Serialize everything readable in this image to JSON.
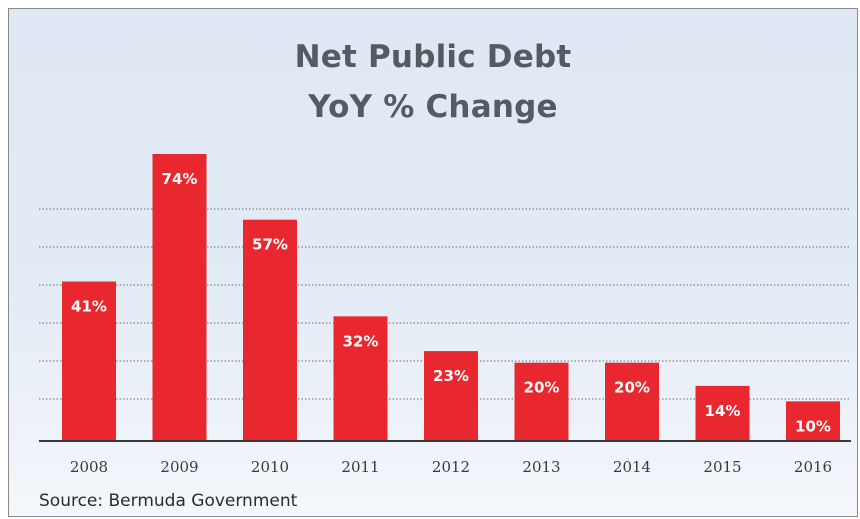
{
  "chart_data": {
    "type": "bar",
    "title": "Net Public Debt",
    "subtitle": "YoY % Change",
    "xlabel": "",
    "ylabel": "",
    "categories": [
      "2008",
      "2009",
      "2010",
      "2011",
      "2012",
      "2013",
      "2014",
      "2015",
      "2016"
    ],
    "values": [
      41,
      74,
      57,
      32,
      23,
      20,
      20,
      14,
      10
    ],
    "data_labels": [
      "41%",
      "74%",
      "57%",
      "32%",
      "23%",
      "20%",
      "20%",
      "14%",
      "10%"
    ],
    "ylim": [
      0,
      74
    ],
    "grid": true,
    "legend": "none",
    "bar_color": "#e8282e",
    "label_color": "#ffffff"
  },
  "source": "Source: Bermuda Government"
}
